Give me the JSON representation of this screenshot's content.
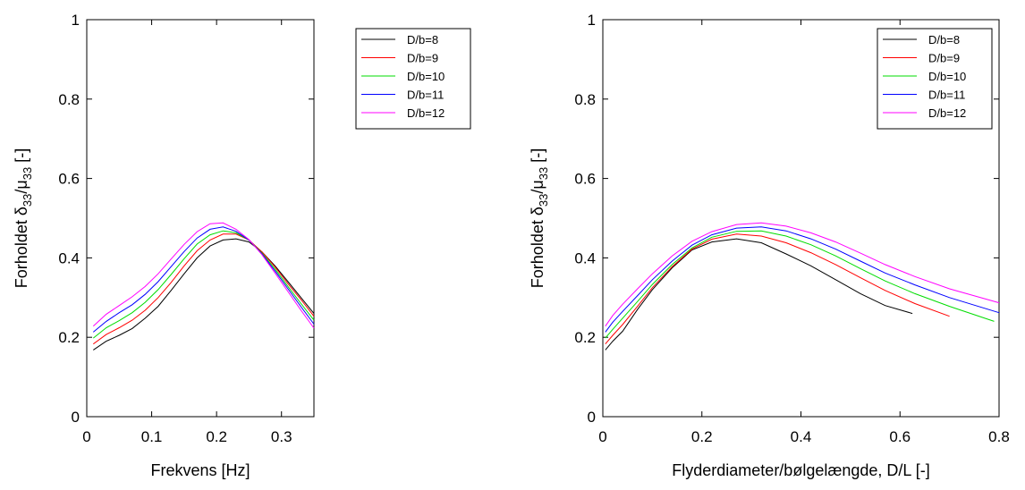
{
  "chart_data": [
    {
      "type": "line",
      "xlabel": "Frekvens [Hz]",
      "ylabel": {
        "prefix": "Forholdet ",
        "delta": "δ",
        "mu": "μ",
        "sub": "33",
        "slash": "/",
        "suffix": "  [-]"
      },
      "xlim": [
        0,
        0.35
      ],
      "ylim": [
        0,
        1
      ],
      "xticks": [
        {
          "v": 0,
          "label": "0"
        },
        {
          "v": 0.1,
          "label": "0.1"
        },
        {
          "v": 0.2,
          "label": "0.2"
        },
        {
          "v": 0.3,
          "label": "0.3"
        }
      ],
      "yticks": [
        {
          "v": 0,
          "label": "0"
        },
        {
          "v": 0.2,
          "label": "0.2"
        },
        {
          "v": 0.4,
          "label": "0.4"
        },
        {
          "v": 0.6,
          "label": "0.6"
        },
        {
          "v": 0.8,
          "label": "0.8"
        },
        {
          "v": 1,
          "label": "1"
        }
      ],
      "grid": false,
      "legend_position": "top-right",
      "series": [
        {
          "name": "D/b=8",
          "color": "#000000",
          "x": [
            0.01,
            0.03,
            0.05,
            0.07,
            0.09,
            0.11,
            0.13,
            0.15,
            0.17,
            0.19,
            0.21,
            0.23,
            0.25,
            0.27,
            0.29,
            0.31,
            0.33,
            0.35
          ],
          "y": [
            0.168,
            0.19,
            0.205,
            0.222,
            0.248,
            0.278,
            0.318,
            0.36,
            0.4,
            0.43,
            0.445,
            0.448,
            0.44,
            0.415,
            0.38,
            0.34,
            0.3,
            0.26
          ]
        },
        {
          "name": "D/b=9",
          "color": "#ff0000",
          "x": [
            0.01,
            0.03,
            0.05,
            0.07,
            0.09,
            0.11,
            0.13,
            0.15,
            0.17,
            0.19,
            0.21,
            0.23,
            0.25,
            0.27,
            0.29,
            0.31,
            0.33,
            0.35
          ],
          "y": [
            0.183,
            0.207,
            0.224,
            0.243,
            0.268,
            0.3,
            0.338,
            0.38,
            0.418,
            0.445,
            0.46,
            0.46,
            0.445,
            0.415,
            0.377,
            0.335,
            0.295,
            0.253
          ]
        },
        {
          "name": "D/b=10",
          "color": "#00dd00",
          "x": [
            0.01,
            0.03,
            0.05,
            0.07,
            0.09,
            0.11,
            0.13,
            0.15,
            0.17,
            0.19,
            0.21,
            0.23,
            0.25,
            0.27,
            0.29,
            0.31,
            0.33,
            0.35
          ],
          "y": [
            0.198,
            0.224,
            0.242,
            0.262,
            0.288,
            0.32,
            0.358,
            0.398,
            0.435,
            0.458,
            0.468,
            0.463,
            0.445,
            0.412,
            0.372,
            0.328,
            0.285,
            0.243
          ]
        },
        {
          "name": "D/b=11",
          "color": "#0000ff",
          "x": [
            0.01,
            0.03,
            0.05,
            0.07,
            0.09,
            0.11,
            0.13,
            0.15,
            0.17,
            0.19,
            0.21,
            0.23,
            0.25,
            0.27,
            0.29,
            0.31,
            0.33,
            0.35
          ],
          "y": [
            0.213,
            0.24,
            0.262,
            0.282,
            0.308,
            0.34,
            0.378,
            0.416,
            0.45,
            0.472,
            0.478,
            0.467,
            0.445,
            0.41,
            0.367,
            0.322,
            0.277,
            0.233
          ]
        },
        {
          "name": "D/b=12",
          "color": "#ff00ff",
          "x": [
            0.01,
            0.03,
            0.05,
            0.07,
            0.09,
            0.11,
            0.13,
            0.15,
            0.17,
            0.19,
            0.21,
            0.23,
            0.25,
            0.27,
            0.29,
            0.31,
            0.33,
            0.35
          ],
          "y": [
            0.228,
            0.258,
            0.28,
            0.302,
            0.328,
            0.36,
            0.397,
            0.434,
            0.466,
            0.486,
            0.488,
            0.472,
            0.446,
            0.408,
            0.362,
            0.315,
            0.268,
            0.223
          ]
        }
      ]
    },
    {
      "type": "line",
      "xlabel": "Flyderdiameter/bølgelængde, D/L [-]",
      "ylabel": {
        "prefix": "Forholdet ",
        "delta": "δ",
        "mu": "μ",
        "sub": "33",
        "slash": "/",
        "suffix": "  [-]"
      },
      "xlim": [
        0,
        0.8
      ],
      "ylim": [
        0,
        1
      ],
      "xticks": [
        {
          "v": 0,
          "label": "0"
        },
        {
          "v": 0.2,
          "label": "0.2"
        },
        {
          "v": 0.4,
          "label": "0.4"
        },
        {
          "v": 0.6,
          "label": "0.6"
        },
        {
          "v": 0.8,
          "label": "0.8"
        }
      ],
      "yticks": [
        {
          "v": 0,
          "label": "0"
        },
        {
          "v": 0.2,
          "label": "0.2"
        },
        {
          "v": 0.4,
          "label": "0.4"
        },
        {
          "v": 0.6,
          "label": "0.6"
        },
        {
          "v": 0.8,
          "label": "0.8"
        },
        {
          "v": 1,
          "label": "1"
        }
      ],
      "grid": false,
      "legend_position": "top-right",
      "series": [
        {
          "name": "D/b=8",
          "color": "#000000",
          "x": [
            0.005,
            0.02,
            0.04,
            0.07,
            0.1,
            0.14,
            0.18,
            0.22,
            0.27,
            0.32,
            0.37,
            0.42,
            0.47,
            0.52,
            0.57,
            0.625
          ],
          "y": [
            0.168,
            0.19,
            0.215,
            0.27,
            0.32,
            0.375,
            0.42,
            0.44,
            0.448,
            0.438,
            0.41,
            0.38,
            0.345,
            0.31,
            0.28,
            0.26
          ]
        },
        {
          "name": "D/b=9",
          "color": "#ff0000",
          "x": [
            0.005,
            0.02,
            0.04,
            0.07,
            0.1,
            0.14,
            0.18,
            0.22,
            0.27,
            0.32,
            0.37,
            0.42,
            0.47,
            0.52,
            0.57,
            0.63,
            0.7
          ],
          "y": [
            0.183,
            0.205,
            0.232,
            0.278,
            0.325,
            0.378,
            0.422,
            0.447,
            0.46,
            0.455,
            0.438,
            0.413,
            0.383,
            0.35,
            0.318,
            0.285,
            0.253
          ]
        },
        {
          "name": "D/b=10",
          "color": "#00dd00",
          "x": [
            0.005,
            0.02,
            0.04,
            0.07,
            0.1,
            0.14,
            0.18,
            0.22,
            0.27,
            0.32,
            0.37,
            0.42,
            0.47,
            0.52,
            0.57,
            0.63,
            0.7,
            0.79
          ],
          "y": [
            0.198,
            0.22,
            0.248,
            0.29,
            0.333,
            0.383,
            0.425,
            0.452,
            0.467,
            0.468,
            0.455,
            0.433,
            0.405,
            0.373,
            0.342,
            0.31,
            0.278,
            0.24
          ]
        },
        {
          "name": "D/b=11",
          "color": "#0000ff",
          "x": [
            0.005,
            0.02,
            0.04,
            0.07,
            0.1,
            0.14,
            0.18,
            0.22,
            0.27,
            0.32,
            0.37,
            0.42,
            0.47,
            0.52,
            0.57,
            0.63,
            0.7,
            0.8
          ],
          "y": [
            0.213,
            0.238,
            0.265,
            0.305,
            0.345,
            0.392,
            0.432,
            0.458,
            0.475,
            0.478,
            0.468,
            0.448,
            0.422,
            0.392,
            0.362,
            0.332,
            0.3,
            0.262
          ]
        },
        {
          "name": "D/b=12",
          "color": "#ff00ff",
          "x": [
            0.005,
            0.02,
            0.04,
            0.07,
            0.1,
            0.14,
            0.18,
            0.22,
            0.27,
            0.32,
            0.37,
            0.42,
            0.47,
            0.52,
            0.57,
            0.63,
            0.7,
            0.8
          ],
          "y": [
            0.228,
            0.255,
            0.283,
            0.322,
            0.36,
            0.405,
            0.442,
            0.466,
            0.484,
            0.488,
            0.48,
            0.463,
            0.44,
            0.412,
            0.383,
            0.353,
            0.322,
            0.287
          ]
        }
      ]
    }
  ]
}
